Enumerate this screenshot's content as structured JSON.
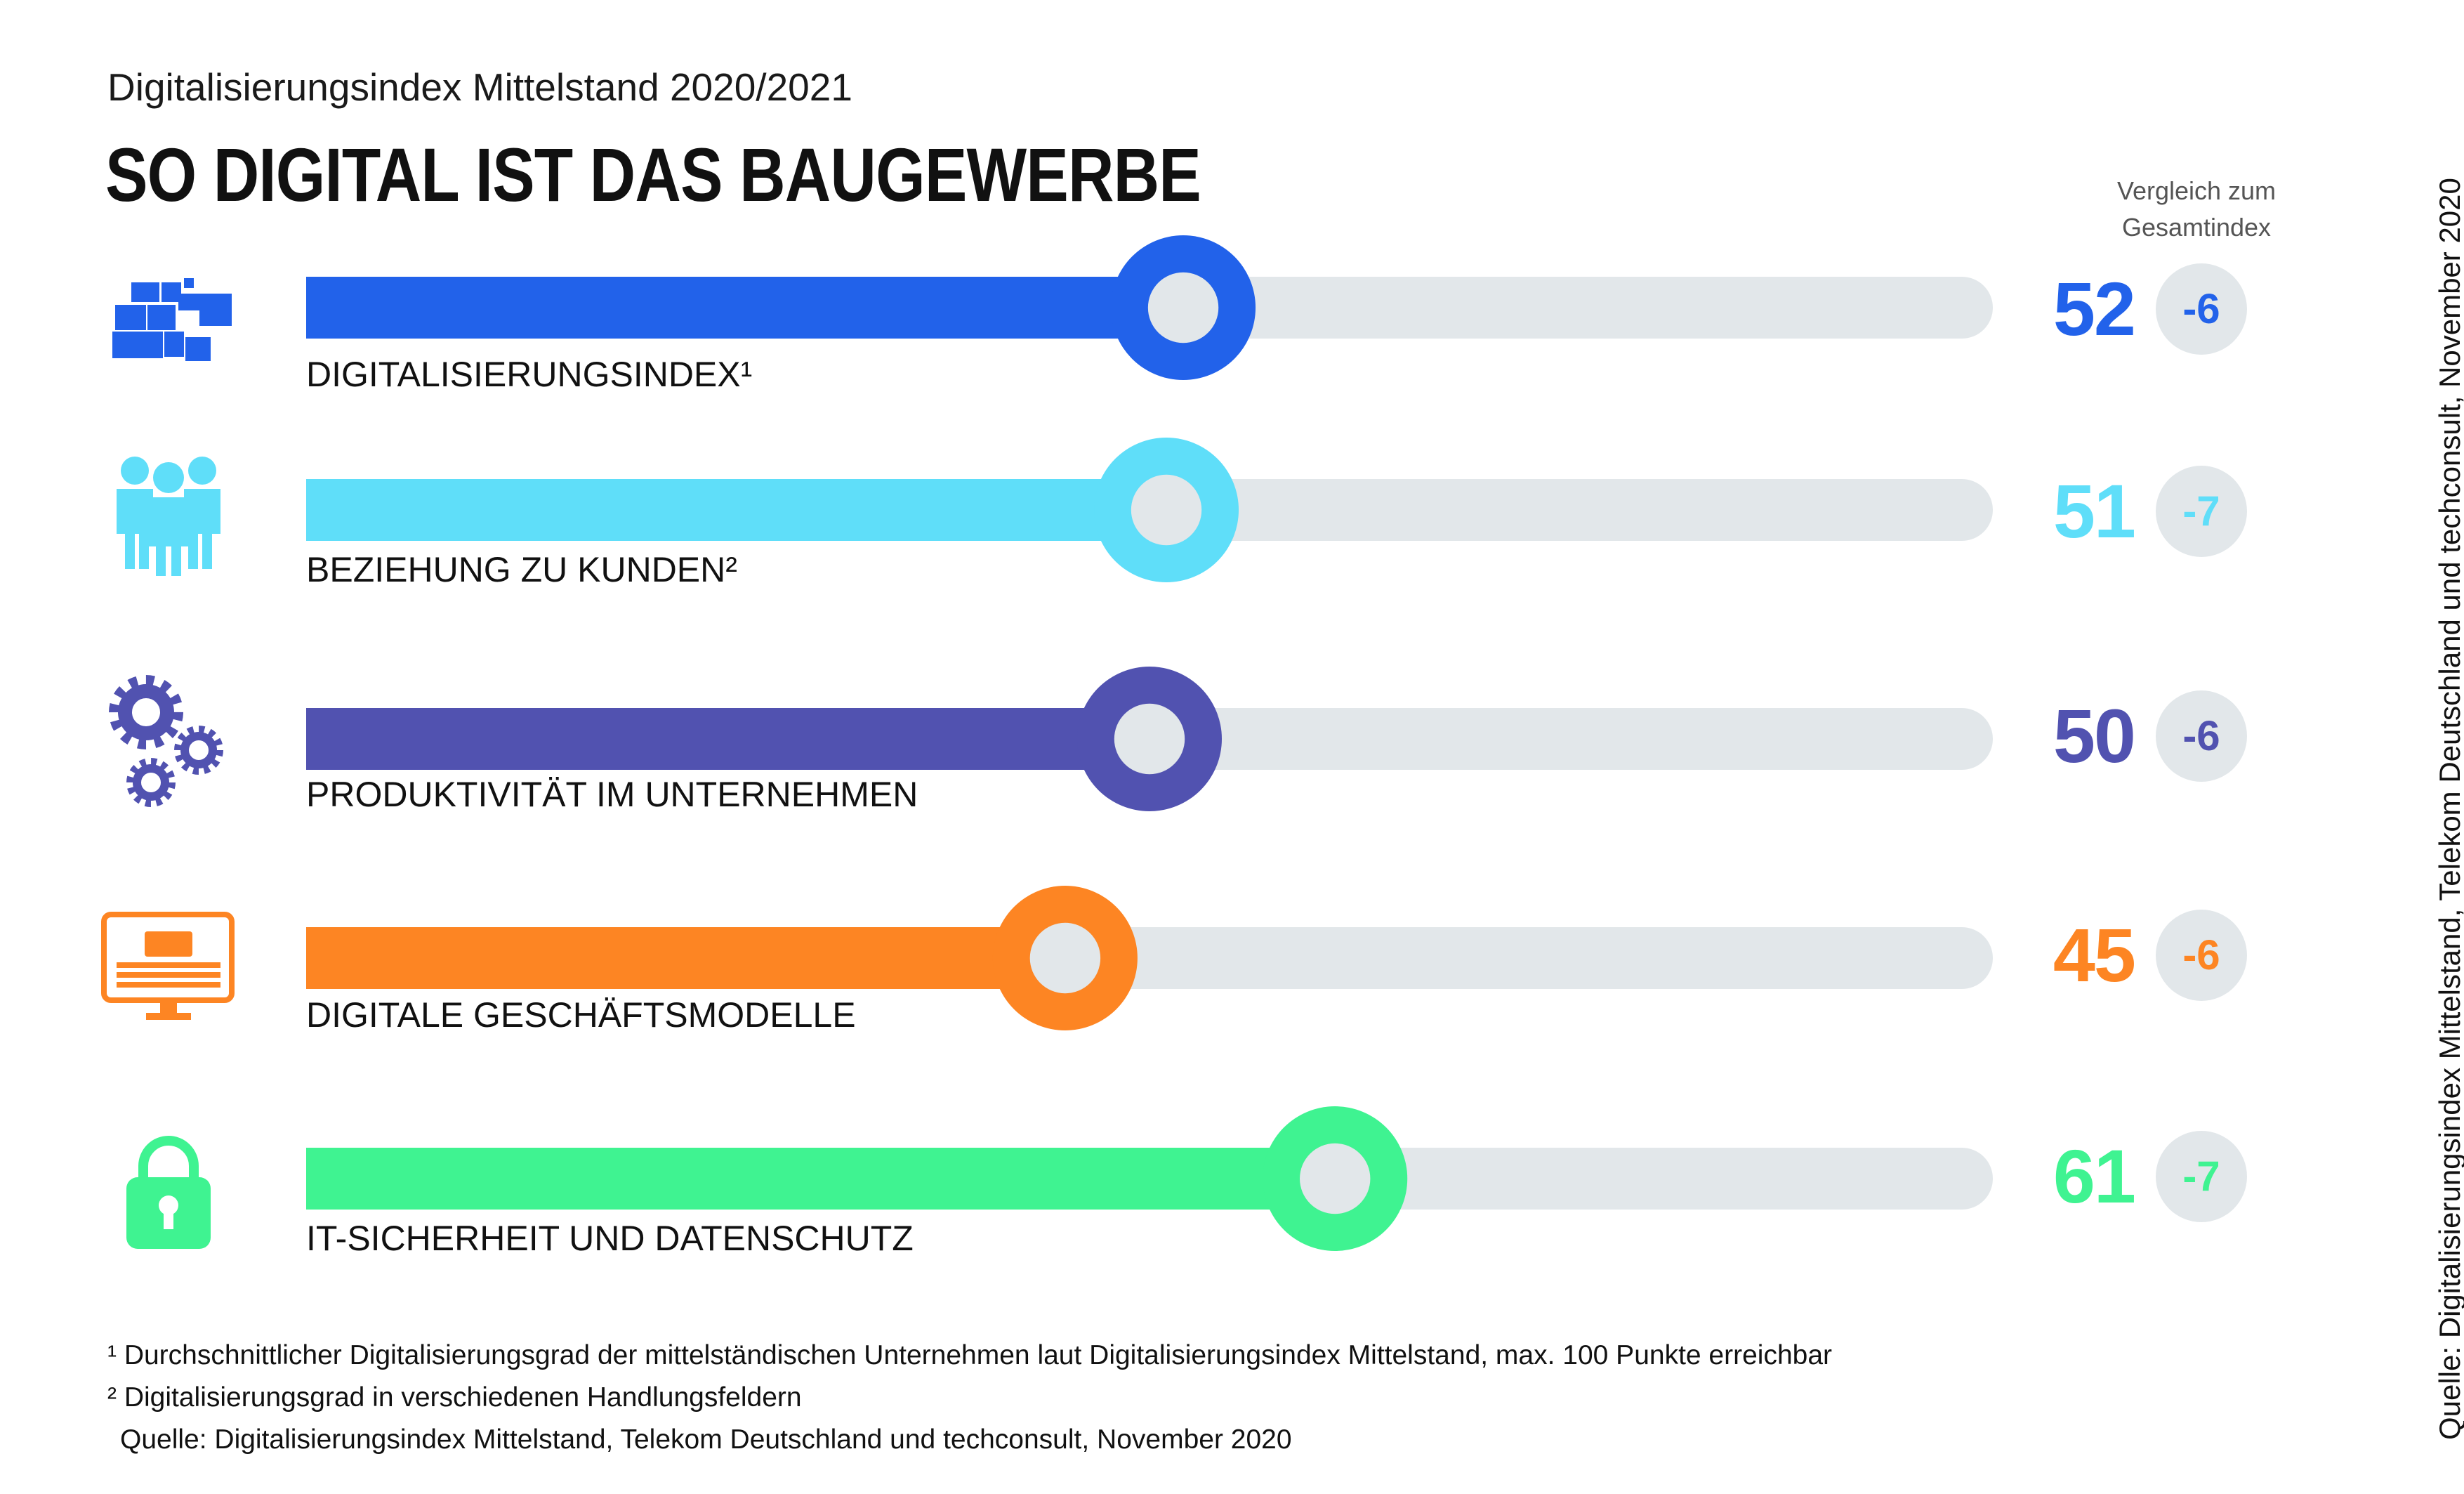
{
  "header": {
    "subtitle": "Digitalisierungsindex Mittelstand 2020/2021",
    "title": "SO DIGITAL IST DAS BAUGEWERBE",
    "comparison_label_line1": "Vergleich zum",
    "comparison_label_line2": "Gesamtindex"
  },
  "chart_data": {
    "type": "bar",
    "ylim": [
      0,
      100
    ],
    "categories": [
      "DIGITALISIERUNGSINDEX¹",
      "BEZIEHUNG ZU KUNDEN²",
      "PRODUKTIVITÄT IM UNTERNEHMEN",
      "DIGITALE GESCHÄFTSMODELLE",
      "IT-SICHERHEIT UND DATENSCHUTZ"
    ],
    "values": [
      52,
      51,
      50,
      45,
      61
    ],
    "comparison_values": [
      "-6",
      "-7",
      "-6",
      "-6",
      "-7"
    ],
    "colors": [
      "#2262ea",
      "#5fdef9",
      "#5152b0",
      "#fd8523",
      "#3ff391"
    ],
    "track_color": "#e2e7ea"
  },
  "rows": [
    {
      "label": "DIGITALISIERUNGSINDEX¹",
      "value": "52",
      "delta": "-6",
      "color": "#2262ea",
      "icon": "puzzle-tiles-icon"
    },
    {
      "label": "BEZIEHUNG ZU KUNDEN²",
      "value": "51",
      "delta": "-7",
      "color": "#5fdef9",
      "icon": "people-group-icon"
    },
    {
      "label": "PRODUKTIVITÄT IM UNTERNEHMEN",
      "value": "50",
      "delta": "-6",
      "color": "#5152b0",
      "icon": "gears-icon"
    },
    {
      "label": "DIGITALE GESCHÄFTSMODELLE",
      "value": "45",
      "delta": "-6",
      "color": "#fd8523",
      "icon": "monitor-icon"
    },
    {
      "label": "IT-SICHERHEIT UND DATENSCHUTZ",
      "value": "61",
      "delta": "-7",
      "color": "#3ff391",
      "icon": "padlock-icon"
    }
  ],
  "footnotes": {
    "note1": "¹ Durchschnittlicher Digitalisierungsgrad der mittelständischen Unternehmen laut Digitalisierungsindex Mittelstand, max. 100 Punkte erreichbar",
    "note2": "² Digitalisierungsgrad in verschiedenen Handlungsfeldern",
    "source": "Quelle: Digitalisierungsindex Mittelstand, Telekom Deutschland und techconsult, November 2020"
  },
  "source_vertical": "Quelle: Digitalisierungsindex Mittelstand, Telekom Deutschland und techconsult, November 2020"
}
